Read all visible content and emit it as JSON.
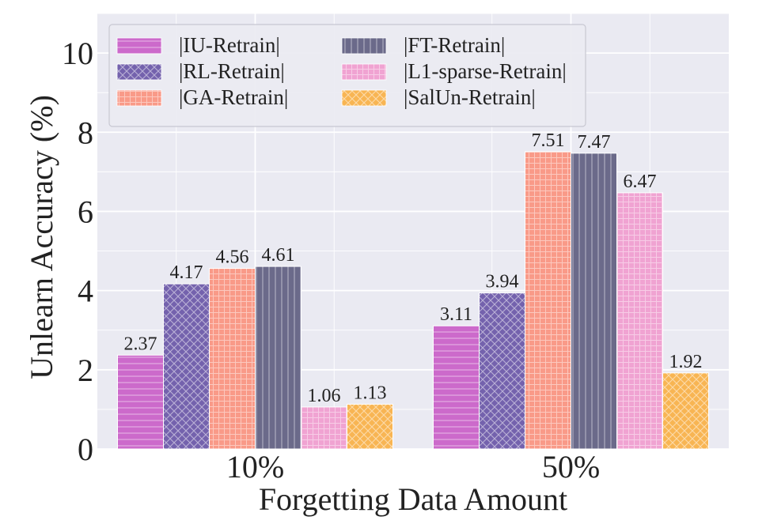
{
  "chart_data": {
    "type": "bar",
    "xlabel": "Forgetting Data Amount",
    "ylabel": "Unlearn Accuracy (%)",
    "categories": [
      "10%",
      "50%"
    ],
    "ylim": [
      0,
      11
    ],
    "yticks": [
      0,
      2,
      4,
      6,
      8,
      10
    ],
    "grid": true,
    "legend_position": "top-left",
    "legend_columns": 2,
    "series": [
      {
        "name": "|IU-Retrain|",
        "values": [
          2.37,
          3.11
        ],
        "color": "#cc6acb",
        "pattern": "horizontal-lines",
        "value_labels": [
          "2.37",
          "3.11"
        ]
      },
      {
        "name": "|RL-Retrain|",
        "values": [
          4.17,
          3.94
        ],
        "color": "#7462ad",
        "pattern": "crosshatch",
        "value_labels": [
          "4.17",
          "3.94"
        ]
      },
      {
        "name": "|GA-Retrain|",
        "values": [
          4.56,
          7.51
        ],
        "color": "#f99a88",
        "pattern": "grid",
        "value_labels": [
          "4.56",
          "7.51"
        ]
      },
      {
        "name": "|FT-Retrain|",
        "values": [
          4.61,
          7.47
        ],
        "color": "#6b6a8a",
        "pattern": "vertical-lines",
        "value_labels": [
          "4.61",
          "7.47"
        ]
      },
      {
        "name": "|L1-sparse-Retrain|",
        "values": [
          1.06,
          6.47
        ],
        "color": "#f0a3d2",
        "pattern": "grid",
        "value_labels": [
          "1.06",
          "6.47"
        ]
      },
      {
        "name": "|SalUn-Retrain|",
        "values": [
          1.13,
          1.92
        ],
        "color": "#f8b553",
        "pattern": "crosshatch",
        "value_labels": [
          "1.13",
          "1.92"
        ]
      }
    ]
  }
}
